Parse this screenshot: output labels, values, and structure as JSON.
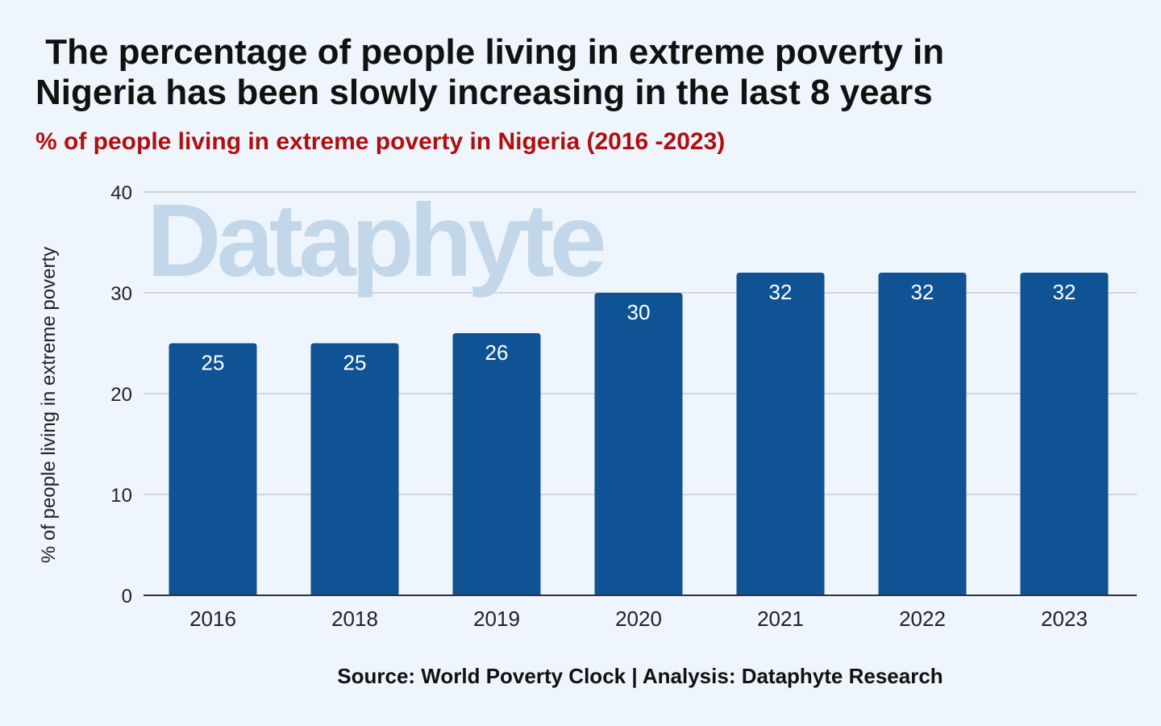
{
  "title": " The percentage of people living in extreme poverty in\nNigeria has been slowly increasing in the last 8 years",
  "subtitle": "% of people living in extreme poverty in Nigeria (2016 -2023)",
  "source": "Source: World Poverty Clock | Analysis: Dataphyte Research",
  "watermark": "Dataphyte",
  "colors": {
    "background": "#eef5fd",
    "bar": "#0f5394",
    "subtitle": "#b00f0f",
    "gridline": "#c7ccd1",
    "watermark": "#c3d7ea"
  },
  "chart_data": {
    "type": "bar",
    "categories": [
      "2016",
      "2018",
      "2019",
      "2020",
      "2021",
      "2022",
      "2023"
    ],
    "values": [
      25,
      25,
      26,
      30,
      32,
      32,
      32
    ],
    "data_labels": [
      "25",
      "25",
      "26",
      "30",
      "32",
      "32",
      "32"
    ],
    "xlabel": "",
    "ylabel": "% of people living in extreme poverty",
    "ylim": [
      0,
      40
    ],
    "yticks": [
      "0",
      "10",
      "20",
      "30",
      "40"
    ],
    "grid": true,
    "legend": "none"
  }
}
